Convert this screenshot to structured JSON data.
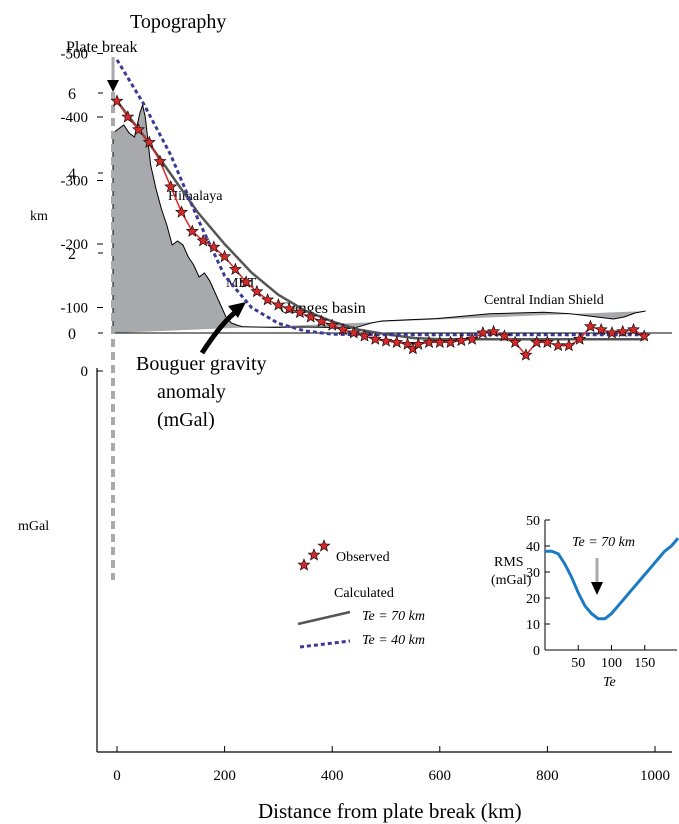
{
  "colors": {
    "topo_fill": "#a7a9ac",
    "plate_break_line": "#aaaaaa",
    "observed_star": "#d42a2a",
    "calc_te70": "#555555",
    "calc_te40": "#3b3b96",
    "rms_curve": "#1a7bc4"
  },
  "labels": {
    "topography": "Topography",
    "plate_break": "Plate break",
    "himalaya": "Himalaya",
    "mbt": "MBT",
    "ganges": "Ganges basin",
    "cis": "Central Indian Shield",
    "bouguer": [
      "Bouguer gravity",
      "anomaly",
      "(mGal)"
    ],
    "topo_unit": "km",
    "grav_unit": "mGal",
    "xlabel": "Distance from plate break (km)",
    "legend_observed": "Observed",
    "legend_calculated": "Calculated",
    "legend_te70": "Te = 70 km",
    "legend_te40": "Te = 40 km",
    "inset_annotation": "Te = 70 km",
    "inset_ylabel": [
      "RMS",
      "(mGal)"
    ],
    "inset_xlabel": "Te"
  },
  "chart_data": [
    {
      "type": "area",
      "title": "Topography",
      "ylabel": "km",
      "xlim": [
        0,
        1000
      ],
      "ylim": [
        0,
        6
      ],
      "yticks": [
        0,
        2,
        4,
        6
      ],
      "x": [
        0,
        10,
        20,
        30,
        40,
        50,
        55,
        60,
        65,
        70,
        80,
        90,
        100,
        110,
        120,
        130,
        140,
        150,
        160,
        170,
        180,
        190,
        200,
        210,
        220,
        230,
        240,
        260,
        300,
        350,
        400,
        430,
        450,
        480,
        500,
        550,
        600,
        650,
        700,
        750,
        800,
        850,
        900,
        930,
        950,
        970,
        990
      ],
      "values": [
        5.0,
        5.1,
        5.2,
        5.0,
        4.9,
        5.5,
        5.7,
        5.4,
        4.8,
        4.2,
        3.6,
        3.1,
        2.7,
        2.2,
        2.3,
        2.2,
        1.9,
        1.7,
        1.4,
        1.5,
        1.3,
        1.0,
        0.7,
        0.4,
        0.25,
        0.2,
        0.16,
        0.15,
        0.14,
        0.15,
        0.14,
        0.1,
        0.13,
        0.25,
        0.3,
        0.33,
        0.36,
        0.42,
        0.48,
        0.5,
        0.52,
        0.48,
        0.4,
        0.35,
        0.4,
        0.5,
        0.55
      ]
    },
    {
      "type": "line",
      "title": "Bouguer gravity anomaly (mGal)",
      "xlabel": "Distance from plate break (km)",
      "ylabel": "mGal",
      "xlim": [
        0,
        1000
      ],
      "ylim": [
        -600,
        0
      ],
      "xticks": [
        0,
        200,
        400,
        600,
        800,
        1000
      ],
      "yticks": [
        0,
        -100,
        -200,
        -300,
        -400,
        -500,
        -600
      ],
      "series": [
        {
          "name": "Observed",
          "style": "star",
          "x": [
            0,
            20,
            40,
            60,
            80,
            100,
            120,
            140,
            160,
            180,
            200,
            220,
            240,
            260,
            280,
            300,
            320,
            340,
            360,
            380,
            400,
            420,
            440,
            460,
            480,
            500,
            520,
            540,
            550,
            560,
            580,
            600,
            620,
            640,
            660,
            680,
            700,
            720,
            740,
            760,
            780,
            800,
            820,
            840,
            860,
            880,
            900,
            920,
            940,
            960,
            980
          ],
          "values": [
            -425,
            -400,
            -380,
            -360,
            -330,
            -290,
            -250,
            -220,
            -205,
            -195,
            -180,
            -160,
            -140,
            -125,
            -112,
            -104,
            -98,
            -92,
            -85,
            -78,
            -72,
            -65,
            -60,
            -55,
            -50,
            -47,
            -45,
            -42,
            -35,
            -42,
            -45,
            -45,
            -45,
            -48,
            -50,
            -60,
            -62,
            -55,
            -45,
            -25,
            -45,
            -45,
            -40,
            -40,
            -50,
            -70,
            -65,
            -60,
            -62,
            -65,
            -55
          ]
        },
        {
          "name": "Te = 70 km",
          "style": "solid",
          "x": [
            0,
            50,
            100,
            150,
            200,
            250,
            300,
            350,
            400,
            450,
            500,
            550,
            600,
            650,
            700,
            750,
            800,
            850,
            900,
            950,
            980
          ],
          "values": [
            -425,
            -370,
            -310,
            -250,
            -200,
            -155,
            -120,
            -95,
            -78,
            -65,
            -58,
            -52,
            -50,
            -50,
            -50,
            -50,
            -50,
            -50,
            -50,
            -50,
            -50
          ]
        },
        {
          "name": "Te = 40 km",
          "style": "dotted",
          "x": [
            0,
            50,
            100,
            150,
            200,
            250,
            300,
            350,
            400,
            450,
            500,
            550,
            600,
            650,
            700,
            750,
            800,
            850,
            900,
            950,
            980
          ],
          "values": [
            -490,
            -420,
            -340,
            -240,
            -150,
            -100,
            -75,
            -63,
            -58,
            -57,
            -57,
            -57,
            -57,
            -57,
            -57,
            -57,
            -57,
            -57,
            -57,
            -57,
            -57
          ]
        }
      ]
    },
    {
      "type": "line",
      "title": "",
      "xlabel": "Te",
      "ylabel": "RMS (mGal)",
      "xlim": [
        0,
        200
      ],
      "ylim": [
        0,
        50
      ],
      "xticks": [
        50,
        100,
        150
      ],
      "yticks": [
        0,
        10,
        20,
        30,
        40,
        50
      ],
      "annotation": "Te = 70 km",
      "series": [
        {
          "name": "",
          "x": [
            0,
            10,
            20,
            30,
            40,
            50,
            60,
            70,
            80,
            90,
            100,
            110,
            120,
            130,
            140,
            150,
            160,
            170,
            180,
            190,
            200
          ],
          "values": [
            38,
            38,
            37,
            33,
            28,
            22,
            17,
            14,
            12,
            12,
            14,
            17,
            20,
            23,
            26,
            29,
            32,
            35,
            38,
            40,
            43
          ]
        }
      ]
    }
  ]
}
